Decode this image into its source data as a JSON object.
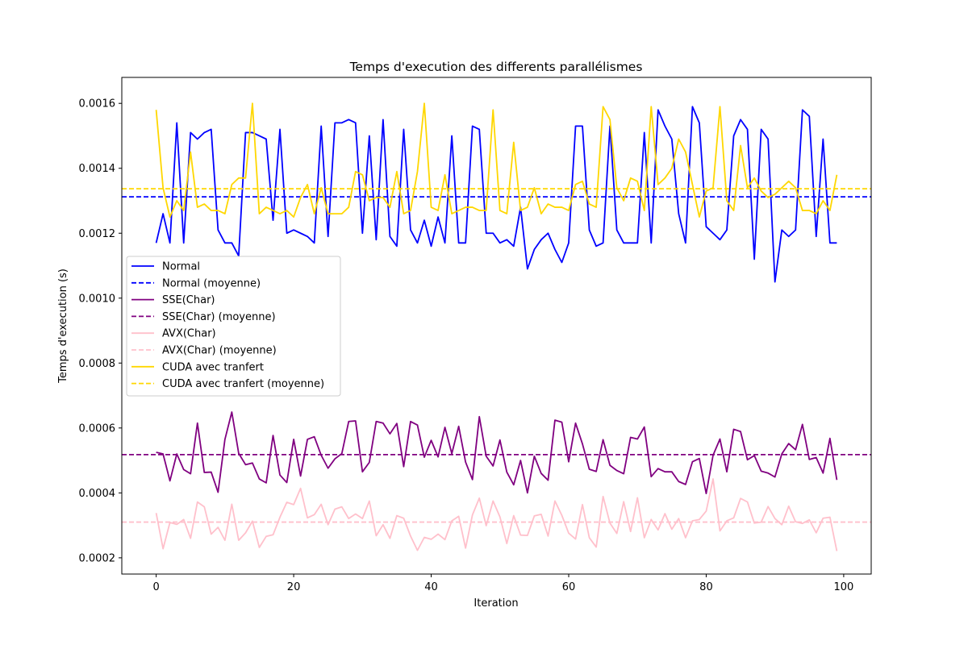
{
  "chart_data": {
    "type": "line",
    "title": "Temps d'execution des differents parallélismes",
    "xlabel": "Iteration",
    "ylabel": "Temps d'execution (s)",
    "xlim": [
      -5,
      104
    ],
    "ylim": [
      0.00015,
      0.00168
    ],
    "x_ticks": [
      0,
      20,
      40,
      60,
      80,
      100
    ],
    "y_ticks": [
      0.0002,
      0.0004,
      0.0006,
      0.0008,
      0.001,
      0.0012,
      0.0014,
      0.0016
    ],
    "y_tick_labels": [
      "0.0002",
      "0.0004",
      "0.0006",
      "0.0008",
      "0.0010",
      "0.0012",
      "0.0014",
      "0.0016"
    ],
    "grid": false,
    "legend_position": "center-left",
    "series": [
      {
        "name": "Normal",
        "color": "#0000ff",
        "mean": 0.001312,
        "mean_label": "Normal (moyenne)",
        "values": [
          0.00117,
          0.00126,
          0.00117,
          0.00154,
          0.00117,
          0.00151,
          0.00149,
          0.00151,
          0.00152,
          0.00121,
          0.00117,
          0.00117,
          0.00113,
          0.00151,
          0.00151,
          0.0015,
          0.00149,
          0.00124,
          0.00152,
          0.0012,
          0.00121,
          0.0012,
          0.00119,
          0.00117,
          0.00153,
          0.00119,
          0.00154,
          0.00154,
          0.00155,
          0.00154,
          0.0012,
          0.0015,
          0.00118,
          0.00155,
          0.00119,
          0.00116,
          0.00152,
          0.00121,
          0.00117,
          0.00124,
          0.00116,
          0.00125,
          0.00117,
          0.0015,
          0.00117,
          0.00117,
          0.00153,
          0.00152,
          0.0012,
          0.0012,
          0.00117,
          0.00118,
          0.00116,
          0.00128,
          0.00109,
          0.00115,
          0.00118,
          0.0012,
          0.00115,
          0.00111,
          0.00117,
          0.00153,
          0.00153,
          0.00121,
          0.00116,
          0.00117,
          0.00153,
          0.00121,
          0.00117,
          0.00117,
          0.00117,
          0.00151,
          0.00117,
          0.00158,
          0.00153,
          0.00149,
          0.00126,
          0.00117,
          0.00159,
          0.00154,
          0.00122,
          0.0012,
          0.00118,
          0.00121,
          0.0015,
          0.00155,
          0.00152,
          0.00112,
          0.00152,
          0.00149,
          0.00105,
          0.00121,
          0.00119,
          0.00121,
          0.00158,
          0.00156,
          0.00119,
          0.00149,
          0.00117,
          0.00117
        ]
      },
      {
        "name": "SSE(Char)",
        "color": "#800080",
        "mean": 0.000518,
        "mean_label": "SSE(Char) (moyenne)",
        "values": [
          0.000525,
          0.00052,
          0.000437,
          0.00052,
          0.000472,
          0.000459,
          0.000615,
          0.000463,
          0.000464,
          0.000402,
          0.000565,
          0.000649,
          0.000522,
          0.000487,
          0.000492,
          0.000443,
          0.000431,
          0.000577,
          0.000455,
          0.000432,
          0.000565,
          0.000452,
          0.000565,
          0.000573,
          0.000516,
          0.000476,
          0.000505,
          0.000521,
          0.00062,
          0.000622,
          0.000465,
          0.000494,
          0.00062,
          0.000615,
          0.000582,
          0.000614,
          0.000481,
          0.00062,
          0.000609,
          0.00051,
          0.000562,
          0.000511,
          0.000602,
          0.000521,
          0.000605,
          0.000495,
          0.000441,
          0.000635,
          0.000513,
          0.000483,
          0.000563,
          0.000464,
          0.000425,
          0.0005,
          0.0004,
          0.000513,
          0.00046,
          0.000439,
          0.000624,
          0.000618,
          0.000496,
          0.000615,
          0.000551,
          0.000473,
          0.000466,
          0.000564,
          0.000485,
          0.000469,
          0.000459,
          0.000571,
          0.000566,
          0.000603,
          0.00045,
          0.000475,
          0.000465,
          0.000465,
          0.000435,
          0.000426,
          0.000496,
          0.000506,
          0.000398,
          0.000516,
          0.000566,
          0.000465,
          0.000596,
          0.000589,
          0.000502,
          0.000515,
          0.000467,
          0.000461,
          0.000449,
          0.00052,
          0.000552,
          0.000533,
          0.000611,
          0.000503,
          0.000509,
          0.000461,
          0.000568,
          0.00044
        ]
      },
      {
        "name": "AVX(Char)",
        "color": "#ffc0cb",
        "mean": 0.00031,
        "mean_label": "AVX(Char) (moyenne)",
        "values": [
          0.000338,
          0.000228,
          0.000309,
          0.000303,
          0.000318,
          0.00026,
          0.000372,
          0.000357,
          0.000273,
          0.000294,
          0.000254,
          0.000365,
          0.000254,
          0.000277,
          0.000313,
          0.000232,
          0.000266,
          0.000271,
          0.000325,
          0.000371,
          0.000364,
          0.000414,
          0.000323,
          0.000333,
          0.000365,
          0.000302,
          0.00035,
          0.000357,
          0.000321,
          0.000335,
          0.000321,
          0.000375,
          0.000268,
          0.000302,
          0.00026,
          0.00033,
          0.000322,
          0.000267,
          0.000223,
          0.000263,
          0.000257,
          0.000273,
          0.000256,
          0.000314,
          0.000328,
          0.00023,
          0.000332,
          0.000384,
          0.000299,
          0.000375,
          0.000326,
          0.000244,
          0.00033,
          0.00027,
          0.000269,
          0.000329,
          0.000334,
          0.000267,
          0.000375,
          0.000331,
          0.000276,
          0.000258,
          0.000364,
          0.000262,
          0.000233,
          0.000389,
          0.000307,
          0.000275,
          0.000373,
          0.000281,
          0.000385,
          0.000262,
          0.000318,
          0.000286,
          0.000336,
          0.000288,
          0.000321,
          0.000262,
          0.000314,
          0.000318,
          0.000344,
          0.000443,
          0.000283,
          0.000314,
          0.000323,
          0.000383,
          0.000372,
          0.000307,
          0.00031,
          0.000358,
          0.000321,
          0.000302,
          0.000359,
          0.000311,
          0.000306,
          0.000317,
          0.000277,
          0.000322,
          0.000325,
          0.000221
        ]
      },
      {
        "name": "CUDA avec tranfert",
        "color": "#ffd700",
        "mean": 0.001337,
        "mean_label": "CUDA avec tranfert (moyenne)",
        "values": [
          0.00158,
          0.00134,
          0.00125,
          0.0013,
          0.00127,
          0.00145,
          0.00128,
          0.00129,
          0.00127,
          0.00127,
          0.00126,
          0.00135,
          0.00137,
          0.00137,
          0.0016,
          0.00126,
          0.00128,
          0.00127,
          0.00126,
          0.00127,
          0.00125,
          0.00131,
          0.00135,
          0.00126,
          0.00134,
          0.00126,
          0.00126,
          0.00126,
          0.00128,
          0.00139,
          0.00138,
          0.0013,
          0.00131,
          0.00131,
          0.00128,
          0.00139,
          0.00126,
          0.00127,
          0.00139,
          0.0016,
          0.00128,
          0.00127,
          0.00138,
          0.00126,
          0.00127,
          0.00128,
          0.00128,
          0.00127,
          0.00127,
          0.00158,
          0.00127,
          0.00126,
          0.00148,
          0.00127,
          0.00128,
          0.00134,
          0.00126,
          0.00129,
          0.00128,
          0.00128,
          0.00127,
          0.00135,
          0.00136,
          0.00129,
          0.00128,
          0.00159,
          0.00155,
          0.00134,
          0.0013,
          0.00137,
          0.00136,
          0.00127,
          0.00159,
          0.00135,
          0.00137,
          0.0014,
          0.00149,
          0.00145,
          0.00135,
          0.00125,
          0.00133,
          0.00134,
          0.00159,
          0.0013,
          0.00127,
          0.00147,
          0.00134,
          0.00137,
          0.00133,
          0.00131,
          0.00132,
          0.00134,
          0.00136,
          0.00134,
          0.00127,
          0.00127,
          0.00126,
          0.0013,
          0.00127,
          0.00138
        ]
      }
    ],
    "legend": [
      {
        "label": "Normal",
        "color": "#0000ff",
        "style": "solid"
      },
      {
        "label": "Normal (moyenne)",
        "color": "#0000ff",
        "style": "dashed"
      },
      {
        "label": "SSE(Char)",
        "color": "#800080",
        "style": "solid"
      },
      {
        "label": "SSE(Char) (moyenne)",
        "color": "#800080",
        "style": "dashed"
      },
      {
        "label": "AVX(Char)",
        "color": "#ffc0cb",
        "style": "solid"
      },
      {
        "label": "AVX(Char) (moyenne)",
        "color": "#ffc0cb",
        "style": "dashed"
      },
      {
        "label": "CUDA avec tranfert",
        "color": "#ffd700",
        "style": "solid"
      },
      {
        "label": "CUDA avec tranfert (moyenne)",
        "color": "#ffd700",
        "style": "dashed"
      }
    ]
  }
}
